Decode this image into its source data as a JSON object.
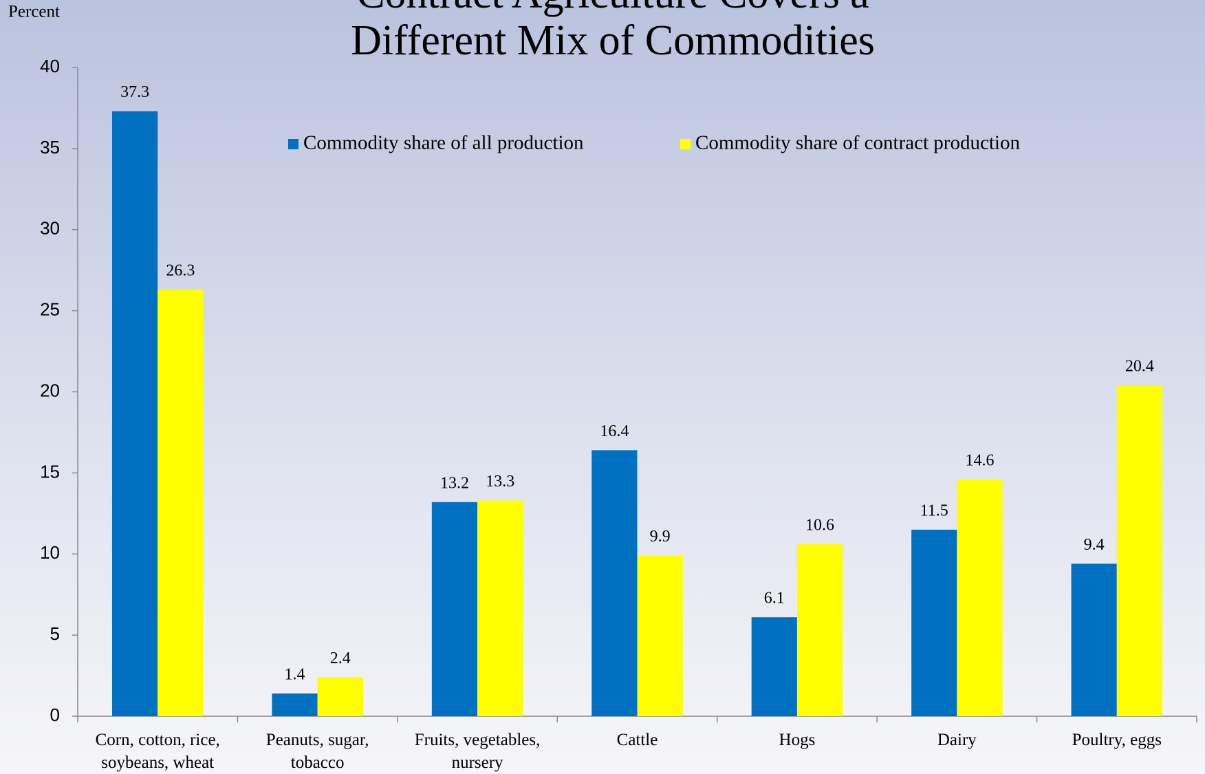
{
  "chart_data": {
    "type": "bar",
    "title": "Contract Agriculture Covers a Different Mix of Commodities",
    "y_label": "Percent",
    "categories": [
      "Corn, cotton, rice, soybeans, wheat",
      "Peanuts, sugar, tobacco",
      "Fruits, vegetables, nursery",
      "Cattle",
      "Hogs",
      "Dairy",
      "Poultry, eggs"
    ],
    "series": [
      {
        "name": "Commodity share of all production",
        "color": "#0070c0",
        "values": [
          37.3,
          1.4,
          13.2,
          16.4,
          6.1,
          11.5,
          9.4
        ]
      },
      {
        "name": "Commodity share of contract production",
        "color": "#ffff00",
        "values": [
          26.3,
          2.4,
          13.3,
          9.9,
          10.6,
          14.6,
          20.4
        ]
      }
    ],
    "ylim": [
      0,
      40
    ],
    "yticks": [
      0,
      5,
      10,
      15,
      20,
      25,
      30,
      35,
      40
    ],
    "grid": false,
    "legend": "top"
  }
}
